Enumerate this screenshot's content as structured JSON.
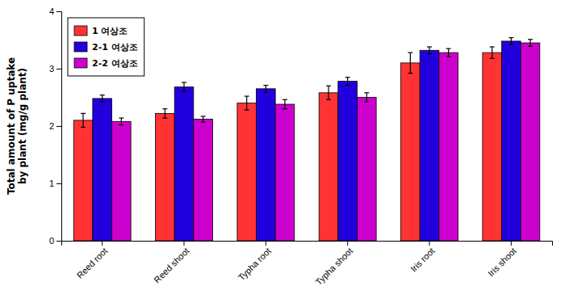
{
  "chart_data": {
    "type": "bar",
    "categories": [
      "Reed root",
      "Reed shoot",
      "Typha root",
      "Typha shoot",
      "Iris root",
      "Iris shoot"
    ],
    "series": [
      {
        "name": "1 여상조",
        "color": "#FF3333",
        "values": [
          2.1,
          2.22,
          2.4,
          2.58,
          3.1,
          3.28
        ],
        "errors": [
          0.12,
          0.08,
          0.12,
          0.12,
          0.18,
          0.1
        ]
      },
      {
        "name": "2-1 여상조",
        "color": "#2200DD",
        "values": [
          2.48,
          2.68,
          2.65,
          2.78,
          3.32,
          3.48
        ],
        "errors": [
          0.06,
          0.08,
          0.06,
          0.07,
          0.06,
          0.06
        ]
      },
      {
        "name": "2-2 여상조",
        "color": "#CC00CC",
        "values": [
          2.08,
          2.12,
          2.38,
          2.5,
          3.28,
          3.45
        ],
        "errors": [
          0.06,
          0.05,
          0.08,
          0.08,
          0.07,
          0.06
        ]
      }
    ],
    "ylabel": "Total amount of P uptake\nby plant (mg/g plant)",
    "ylim": [
      0,
      4
    ],
    "yticks": [
      0,
      1,
      2,
      3,
      4
    ],
    "grid": false,
    "legend": "upper-left"
  }
}
